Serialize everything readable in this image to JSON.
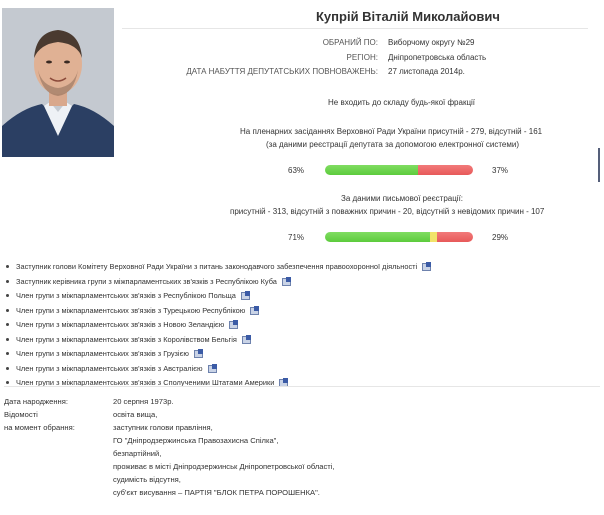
{
  "deputy": {
    "name": "Купрій Віталій Миколайович"
  },
  "meta": [
    {
      "key": "ОБРАНИЙ ПО:",
      "value": "Виборчому округу №29"
    },
    {
      "key": "РЕГІОН:",
      "value": "Дніпропетровська область"
    },
    {
      "key": "ДАТА НАБУТТЯ ДЕПУТАТСЬКИХ ПОВНОВАЖЕНЬ:",
      "value": "27 листопада 2014р."
    }
  ],
  "faction_text": "Не входить до складу будь-якої фракції",
  "attendance_electronic": {
    "line1": "На пленарних засіданнях Верховної Ради України присутній - 279, відсутній - 161",
    "line2": "(за даними реєстрації депутата за допомогою електронної системи)",
    "present_pct_label": "63%",
    "absent_pct_label": "37%",
    "present_fraction": 0.63,
    "absent_fraction": 0.37
  },
  "attendance_written": {
    "line1": "За даними письмової реєстрації:",
    "line2": "присутній - 313, відсутній з поважних причин - 20, відсутній з невідомих причин - 107",
    "present_pct_label": "71%",
    "absent_pct_label": "29%",
    "present_fraction": 0.71,
    "excused_fraction": 0.045,
    "absent_fraction": 0.245
  },
  "roles": [
    "Заступник голови Комітету Верховної Ради України з питань законодавчого забезпечення правоохоронної діяльності",
    "Заступник керівника групи з міжпарламентських зв'язків з Республікою Куба",
    "Член групи з міжпарламентських зв'язків з Республікою Польща",
    "Член групи з міжпарламентських зв'язків з Турецькою Республікою",
    "Член групи з міжпарламентських зв'язків з Новою Зеландією",
    "Член групи з міжпарламентських зв'язків з Королівством Бельгія",
    "Член групи з міжпарламентських зв'язків з Грузією",
    "Член групи з міжпарламентських зв'язків з Австралією",
    "Член групи з міжпарламентських зв'язків з Сполученими Штатами Америки"
  ],
  "bio": {
    "birth_key": "Дата народження:",
    "birth_value": "20 серпня 1973р.",
    "info_key_1": "Відомості",
    "info_key_2": "на момент обрання:",
    "values": [
      "освіта вища,",
      "заступник голови правління,",
      "ГО \"Дніпродзержинська Правозахисна Спілка\",",
      "безпартійний,",
      "проживає в місті Дніпродзержинськ Дніпропетровської області,",
      "судимість відсутня,",
      "суб'єкт висування – ПАРТІЯ \"БЛОК ПЕТРА ПОРОШЕНКА\"."
    ]
  },
  "colors": {
    "present": "#5ccb3c",
    "excused": "#f1e36a",
    "absent": "#e75959"
  }
}
